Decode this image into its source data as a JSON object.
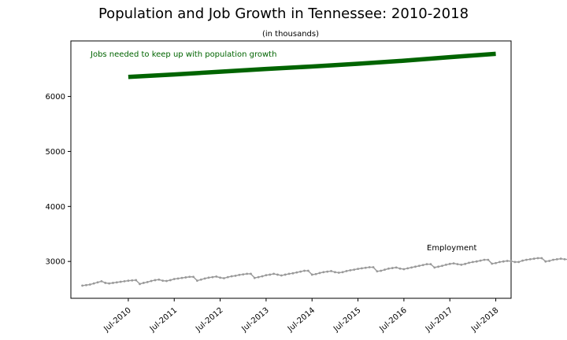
{
  "chart_data": {
    "type": "line",
    "title": "Population and Job Growth in Tennessee: 2010-2018",
    "subtitle": "(in thousands)",
    "xlabel": "",
    "ylabel": "",
    "x_range": [
      "2009-04",
      "2018-11"
    ],
    "ylim": [
      2330,
      7010
    ],
    "y_ticks": [
      3000,
      4000,
      5000,
      6000
    ],
    "x_ticks": [
      {
        "date": "2010-07",
        "label": "Jul-2010"
      },
      {
        "date": "2011-07",
        "label": "Jul-2011"
      },
      {
        "date": "2012-07",
        "label": "Jul-2012"
      },
      {
        "date": "2013-07",
        "label": "Jul-2013"
      },
      {
        "date": "2014-07",
        "label": "Jul-2014"
      },
      {
        "date": "2015-07",
        "label": "Jul-2015"
      },
      {
        "date": "2016-07",
        "label": "Jul-2016"
      },
      {
        "date": "2017-07",
        "label": "Jul-2017"
      },
      {
        "date": "2018-07",
        "label": "Jul-2018"
      }
    ],
    "grid": false,
    "series": [
      {
        "name": "Jobs needed to keep up with population growth",
        "color": "#006400",
        "x": [
          "2010-07",
          "2011-07",
          "2012-07",
          "2013-07",
          "2014-07",
          "2015-07",
          "2016-07",
          "2017-07",
          "2018-07"
        ],
        "values": [
          6355,
          6400,
          6450,
          6500,
          6545,
          6595,
          6650,
          6715,
          6775
        ]
      },
      {
        "name": "Employment",
        "color": "#999999",
        "start": "2009-07",
        "end": "2018-06",
        "values": [
          2560,
          2570,
          2580,
          2600,
          2620,
          2640,
          2610,
          2600,
          2610,
          2620,
          2630,
          2640,
          2650,
          2655,
          2660,
          2590,
          2610,
          2625,
          2645,
          2660,
          2670,
          2650,
          2645,
          2660,
          2680,
          2690,
          2700,
          2710,
          2720,
          2720,
          2650,
          2670,
          2690,
          2705,
          2715,
          2725,
          2705,
          2695,
          2715,
          2730,
          2740,
          2755,
          2765,
          2775,
          2775,
          2700,
          2715,
          2730,
          2750,
          2760,
          2775,
          2760,
          2745,
          2760,
          2775,
          2785,
          2800,
          2815,
          2830,
          2830,
          2760,
          2770,
          2790,
          2805,
          2815,
          2825,
          2805,
          2795,
          2805,
          2825,
          2840,
          2850,
          2865,
          2875,
          2885,
          2895,
          2895,
          2820,
          2830,
          2850,
          2870,
          2880,
          2890,
          2870,
          2860,
          2875,
          2890,
          2905,
          2920,
          2935,
          2950,
          2950,
          2890,
          2905,
          2920,
          2940,
          2955,
          2965,
          2950,
          2940,
          2955,
          2975,
          2990,
          3000,
          3015,
          3030,
          3030,
          2960,
          2970,
          2990,
          3000,
          3010,
          3005,
          2990,
          2990,
          3015,
          3030,
          3040,
          3050,
          3060,
          3060,
          3000,
          3010,
          3030,
          3040,
          3050,
          3040,
          3035,
          3050,
          3075,
          3090,
          3100,
          3115,
          3120,
          3110
        ]
      }
    ],
    "annotations": [
      {
        "text": "Jobs needed to keep up with population growth",
        "color": "#006400"
      },
      {
        "text": "Employment",
        "color": "#000000"
      }
    ]
  }
}
